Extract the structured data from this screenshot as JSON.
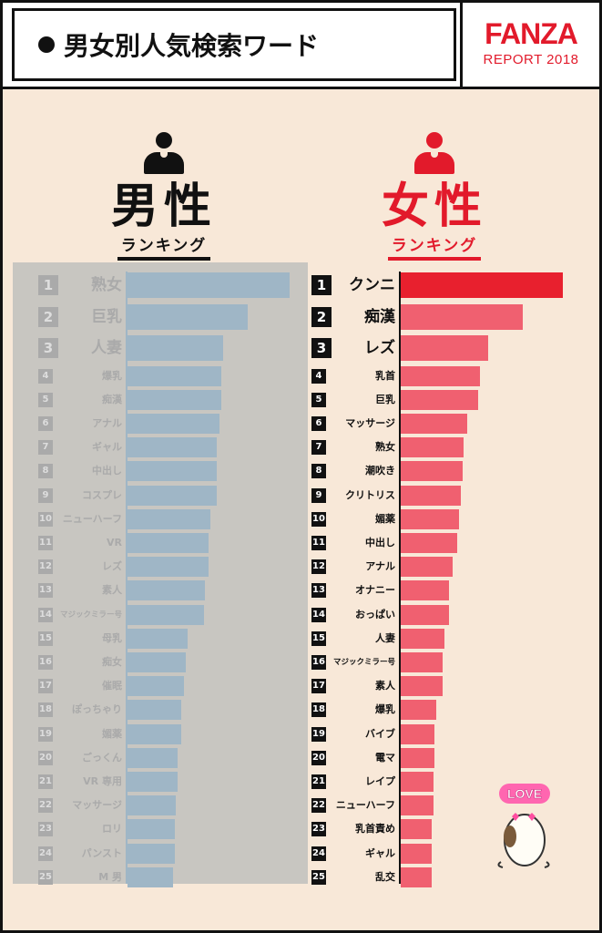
{
  "header": {
    "title": "男女別人気検索ワード",
    "logo_main": "FANZA",
    "logo_sub": "REPORT 2018"
  },
  "colors": {
    "accent": "#e21a2b",
    "female_bar": "#f06070",
    "female_bar_top": "#e8202e",
    "male_bar": "#9fb6c6"
  },
  "male": {
    "title": "男性",
    "subtitle": "ランキング",
    "icon": "person-icon"
  },
  "female": {
    "title": "女性",
    "subtitle": "ランキング",
    "icon": "person-icon"
  },
  "mascot": {
    "label": "LOVE",
    "icon": "mascot-icon"
  },
  "chart_data": [
    {
      "type": "bar",
      "orientation": "horizontal",
      "title": "男性 ランキング",
      "categories": [
        "熟女",
        "巨乳",
        "人妻",
        "爆乳",
        "痴漢",
        "アナル",
        "ギャル",
        "中出し",
        "コスプレ",
        "ニューハーフ",
        "VR",
        "レズ",
        "素人",
        "マジックミラー号",
        "母乳",
        "痴女",
        "催眠",
        "ぽっちゃり",
        "媚薬",
        "ごっくん",
        "VR 専用",
        "マッサージ",
        "ロリ",
        "パンスト",
        "M 男"
      ],
      "ranks": [
        1,
        2,
        3,
        4,
        5,
        6,
        7,
        8,
        9,
        10,
        11,
        12,
        13,
        14,
        15,
        16,
        17,
        18,
        19,
        20,
        21,
        22,
        23,
        24,
        25
      ],
      "values": [
        100,
        74,
        59,
        58,
        58,
        57,
        55,
        55,
        55,
        51,
        50,
        50,
        48,
        47,
        37,
        36,
        35,
        33,
        33,
        31,
        31,
        30,
        29,
        29,
        28
      ]
    },
    {
      "type": "bar",
      "orientation": "horizontal",
      "title": "女性 ランキング",
      "categories": [
        "クンニ",
        "痴漢",
        "レズ",
        "乳首",
        "巨乳",
        "マッサージ",
        "熟女",
        "潮吹き",
        "クリトリス",
        "媚薬",
        "中出し",
        "アナル",
        "オナニー",
        "おっぱい",
        "人妻",
        "マジックミラー号",
        "素人",
        "爆乳",
        "バイブ",
        "電マ",
        "レイプ",
        "ニューハーフ",
        "乳首責め",
        "ギャル",
        "乱交"
      ],
      "ranks": [
        1,
        2,
        3,
        4,
        5,
        6,
        7,
        8,
        9,
        10,
        11,
        12,
        13,
        14,
        15,
        16,
        17,
        18,
        19,
        20,
        21,
        22,
        23,
        24,
        25
      ],
      "values": [
        100,
        75,
        54,
        49,
        48,
        41,
        39,
        38,
        37,
        36,
        35,
        32,
        30,
        30,
        27,
        26,
        26,
        22,
        21,
        21,
        20,
        20,
        19,
        19,
        19
      ]
    }
  ]
}
